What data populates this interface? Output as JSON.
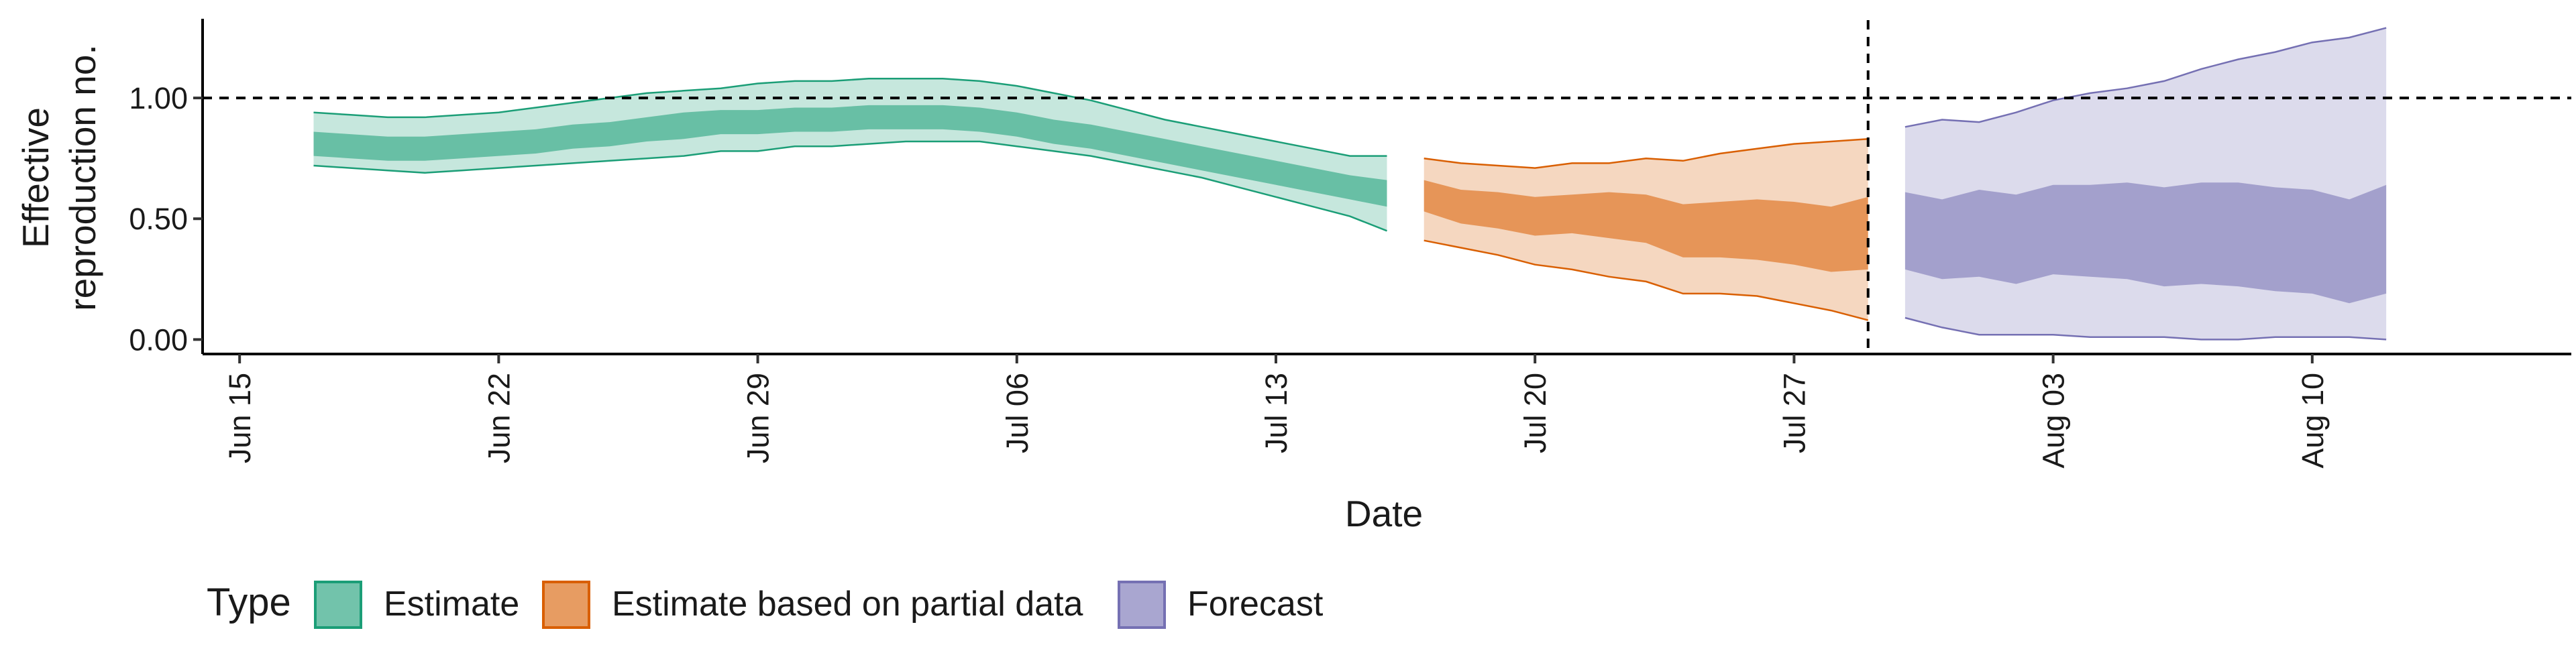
{
  "chart_data": {
    "type": "area",
    "xlabel": "Date",
    "ylabel": [
      "Effective",
      "reproduction no."
    ],
    "x_ticks": [
      {
        "date": "2020-06-15",
        "label": "Jun 15"
      },
      {
        "date": "2020-06-22",
        "label": "Jun 22"
      },
      {
        "date": "2020-06-29",
        "label": "Jun 29"
      },
      {
        "date": "2020-07-06",
        "label": "Jul 06"
      },
      {
        "date": "2020-07-13",
        "label": "Jul 13"
      },
      {
        "date": "2020-07-20",
        "label": "Jul 20"
      },
      {
        "date": "2020-07-27",
        "label": "Jul 27"
      },
      {
        "date": "2020-08-03",
        "label": "Aug 03"
      },
      {
        "date": "2020-08-10",
        "label": "Aug 10"
      }
    ],
    "y_ticks": [
      {
        "value": 0,
        "label": "0.00"
      },
      {
        "value": 0.5,
        "label": "0.50"
      },
      {
        "value": 1,
        "label": "1.00"
      }
    ],
    "xlim": [
      "2020-06-14",
      "2020-08-17"
    ],
    "ylim": [
      -0.06,
      1.35
    ],
    "reference_hline": 1.0,
    "reference_vline": "2020-07-29",
    "grid": false,
    "legend": {
      "title": "Type",
      "position": "bottom",
      "entries": [
        {
          "name": "Estimate",
          "fill": "#1b9e77",
          "color": "#1b9e77"
        },
        {
          "name": "Estimate based on partial data",
          "fill": "#d95f02",
          "color": "#d95f02"
        },
        {
          "name": "Forecast",
          "fill": "#7570b3",
          "color": "#7570b3"
        }
      ]
    },
    "series": [
      {
        "name": "Estimate",
        "color": "#1b9e77",
        "x": [
          "2020-06-17",
          "2020-06-18",
          "2020-06-19",
          "2020-06-20",
          "2020-06-21",
          "2020-06-22",
          "2020-06-23",
          "2020-06-24",
          "2020-06-25",
          "2020-06-26",
          "2020-06-27",
          "2020-06-28",
          "2020-06-29",
          "2020-06-30",
          "2020-07-01",
          "2020-07-02",
          "2020-07-03",
          "2020-07-04",
          "2020-07-05",
          "2020-07-06",
          "2020-07-07",
          "2020-07-08",
          "2020-07-09",
          "2020-07-10",
          "2020-07-11",
          "2020-07-12",
          "2020-07-13",
          "2020-07-14",
          "2020-07-15",
          "2020-07-16"
        ],
        "lower_90": [
          0.72,
          0.71,
          0.7,
          0.69,
          0.7,
          0.71,
          0.72,
          0.73,
          0.74,
          0.75,
          0.76,
          0.78,
          0.78,
          0.8,
          0.8,
          0.81,
          0.82,
          0.82,
          0.82,
          0.8,
          0.78,
          0.76,
          0.73,
          0.7,
          0.67,
          0.63,
          0.59,
          0.55,
          0.51,
          0.45
        ],
        "lower_50": [
          0.76,
          0.75,
          0.74,
          0.74,
          0.75,
          0.76,
          0.77,
          0.79,
          0.8,
          0.82,
          0.83,
          0.85,
          0.85,
          0.86,
          0.86,
          0.87,
          0.87,
          0.87,
          0.86,
          0.84,
          0.81,
          0.79,
          0.76,
          0.73,
          0.7,
          0.67,
          0.64,
          0.61,
          0.58,
          0.55
        ],
        "upper_50": [
          0.86,
          0.85,
          0.84,
          0.84,
          0.85,
          0.86,
          0.87,
          0.89,
          0.9,
          0.92,
          0.94,
          0.95,
          0.95,
          0.96,
          0.96,
          0.97,
          0.97,
          0.97,
          0.96,
          0.94,
          0.91,
          0.89,
          0.86,
          0.83,
          0.8,
          0.77,
          0.74,
          0.71,
          0.68,
          0.66
        ],
        "upper_90": [
          0.94,
          0.93,
          0.92,
          0.92,
          0.93,
          0.94,
          0.96,
          0.98,
          1.0,
          1.02,
          1.03,
          1.04,
          1.06,
          1.07,
          1.07,
          1.08,
          1.08,
          1.08,
          1.07,
          1.05,
          1.02,
          0.99,
          0.95,
          0.91,
          0.88,
          0.85,
          0.82,
          0.79,
          0.76,
          0.76
        ]
      },
      {
        "name": "Estimate based on partial data",
        "color": "#d95f02",
        "x": [
          "2020-07-17",
          "2020-07-18",
          "2020-07-19",
          "2020-07-20",
          "2020-07-21",
          "2020-07-22",
          "2020-07-23",
          "2020-07-24",
          "2020-07-25",
          "2020-07-26",
          "2020-07-27",
          "2020-07-28",
          "2020-07-29"
        ],
        "lower_90": [
          0.41,
          0.38,
          0.35,
          0.31,
          0.29,
          0.26,
          0.24,
          0.19,
          0.19,
          0.18,
          0.15,
          0.12,
          0.08
        ],
        "lower_50": [
          0.53,
          0.48,
          0.46,
          0.43,
          0.44,
          0.42,
          0.4,
          0.34,
          0.34,
          0.33,
          0.31,
          0.28,
          0.29
        ],
        "upper_50": [
          0.66,
          0.62,
          0.61,
          0.59,
          0.6,
          0.61,
          0.6,
          0.56,
          0.57,
          0.58,
          0.57,
          0.55,
          0.59
        ],
        "upper_90": [
          0.75,
          0.73,
          0.72,
          0.71,
          0.73,
          0.73,
          0.75,
          0.74,
          0.77,
          0.79,
          0.81,
          0.82,
          0.83
        ]
      },
      {
        "name": "Forecast",
        "color": "#7570b3",
        "x": [
          "2020-07-30",
          "2020-07-31",
          "2020-08-01",
          "2020-08-02",
          "2020-08-03",
          "2020-08-04",
          "2020-08-05",
          "2020-08-06",
          "2020-08-07",
          "2020-08-08",
          "2020-08-09",
          "2020-08-10",
          "2020-08-11",
          "2020-08-12"
        ],
        "lower_90": [
          0.09,
          0.05,
          0.02,
          0.02,
          0.02,
          0.01,
          0.01,
          0.01,
          0.0,
          0.0,
          0.01,
          0.01,
          0.01,
          0.0
        ],
        "lower_50": [
          0.29,
          0.25,
          0.26,
          0.23,
          0.27,
          0.26,
          0.25,
          0.22,
          0.23,
          0.22,
          0.2,
          0.19,
          0.15,
          0.19
        ],
        "upper_50": [
          0.61,
          0.58,
          0.62,
          0.6,
          0.64,
          0.64,
          0.65,
          0.63,
          0.65,
          0.65,
          0.63,
          0.62,
          0.58,
          0.64
        ],
        "upper_90": [
          0.88,
          0.91,
          0.9,
          0.94,
          0.99,
          1.02,
          1.04,
          1.07,
          1.12,
          1.16,
          1.19,
          1.23,
          1.25,
          1.29
        ]
      }
    ]
  }
}
